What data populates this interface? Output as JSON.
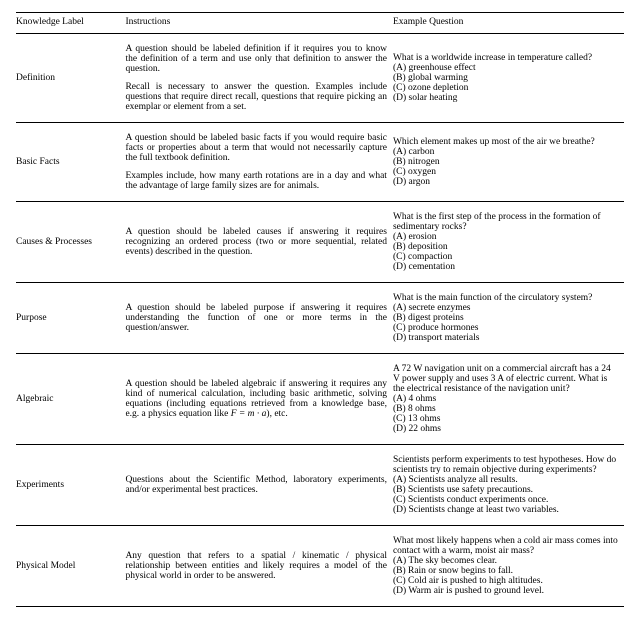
{
  "headers": {
    "label": "Knowledge Label",
    "instructions": "Instructions",
    "example": "Example Question"
  },
  "rows": [
    {
      "label": "Definition",
      "instructions": [
        "A question should be labeled definition if it requires you to know the definition of a term and use only that definition to answer the question.",
        "Recall is necessary to answer the question. Examples include questions that require direct recall, questions that require picking an exemplar or element from a set."
      ],
      "example_q": "What is a worldwide increase in temperature called?",
      "options": [
        "(A) greenhouse effect",
        "(B) global warming",
        "(C) ozone depletion",
        "(D) solar heating"
      ]
    },
    {
      "label": "Basic Facts",
      "instructions": [
        "A question should be labeled basic facts if you would require basic facts or properties about a term that would not necessarily capture the full textbook definition.",
        "Examples include, how many earth rotations are in a day and what the advantage of large family sizes are for animals."
      ],
      "example_q": "Which element makes up most of the air we breathe?",
      "options": [
        "(A) carbon",
        "(B) nitrogen",
        "(C) oxygen",
        "(D) argon"
      ]
    },
    {
      "label": "Causes & Processes",
      "instructions": [
        "A question should be labeled causes if answering it requires recognizing an ordered process (two or more sequential, related events) described in the question."
      ],
      "example_q": "What is the first step of the process in the formation of sedimentary rocks?",
      "options": [
        "(A) erosion",
        "(B) deposition",
        "(C) compaction",
        "(D) cementation"
      ]
    },
    {
      "label": "Purpose",
      "instructions": [
        "A question should be labeled purpose if answering it requires understanding the function of one or more terms in the question/answer."
      ],
      "example_q": "What is the main function of the circulatory system?",
      "options": [
        "(A) secrete enzymes",
        "(B) digest proteins",
        "(C) produce hormones",
        "(D) transport materials"
      ]
    },
    {
      "label": "Algebraic",
      "instructions": [
        "A question should be labeled algebraic if answering it requires any kind of numerical calculation, including basic arithmetic, solving equations (including equations retrieved from a knowledge base, e.g. a physics equation like F = m · a), etc."
      ],
      "example_q": "A 72 W navigation unit on a commercial aircraft has a 24 V power supply and uses 3 A of electric current. What is the electrical resistance of the navigation unit?",
      "options": [
        "(A) 4 ohms",
        "(B) 8 ohms",
        "(C) 13 ohms",
        "(D) 22 ohms"
      ]
    },
    {
      "label": "Experiments",
      "instructions": [
        "Questions about the Scientific Method, laboratory experiments, and/or experimental best practices."
      ],
      "example_q": "Scientists perform experiments to test hypotheses. How do scientists try to remain objective during experiments?",
      "options": [
        "(A) Scientists analyze all results.",
        "(B) Scientists use safety precautions.",
        "(C) Scientists conduct experiments once.",
        "(D) Scientists change at least two variables."
      ]
    },
    {
      "label": "Physical Model",
      "instructions": [
        "Any question that refers to a spatial / kinematic / physical relationship between entities and likely requires a model of the physical world in order to be answered."
      ],
      "example_q": "What most likely happens when a cold air mass comes into contact with a warm, moist air mass?",
      "options": [
        "(A) The sky becomes clear.",
        "(B) Rain or snow begins to fall.",
        "(C) Cold air is pushed to high altitudes.",
        "(D) Warm air is pushed to ground level."
      ]
    }
  ],
  "algebraic_formula": "F = m · a"
}
